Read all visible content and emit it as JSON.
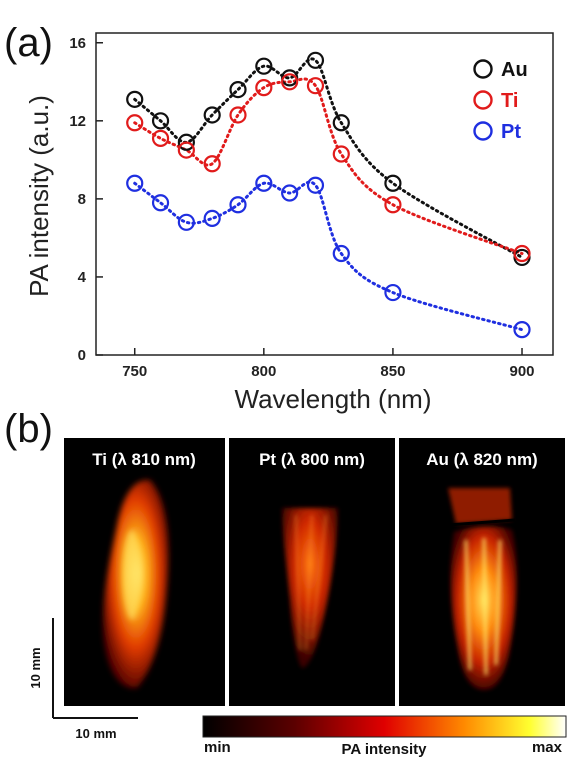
{
  "panel_a_label": "(a)",
  "panel_b_label": "(b)",
  "colors": {
    "Au": "#111111",
    "Ti": "#e11b1b",
    "Pt": "#1f2fe0"
  },
  "chart_data": {
    "type": "scatter",
    "title": "",
    "xlabel": "Wavelength (nm)",
    "ylabel": "PA intensity (a.u.)",
    "xlim": [
      735,
      912
    ],
    "ylim": [
      0,
      16.5
    ],
    "xticks": [
      750,
      800,
      850,
      900
    ],
    "yticks": [
      0,
      4,
      8,
      12,
      16
    ],
    "grid": false,
    "legend_position": "top-right",
    "marker": "open-circle",
    "line_style": "dotted",
    "x": [
      750,
      760,
      770,
      780,
      790,
      800,
      810,
      820,
      830,
      850,
      900
    ],
    "series": [
      {
        "name": "Au",
        "color": "#111111",
        "values": [
          13.1,
          12.0,
          10.9,
          12.3,
          13.6,
          14.8,
          14.2,
          15.1,
          11.9,
          8.8,
          5.0
        ]
      },
      {
        "name": "Ti",
        "color": "#e11b1b",
        "values": [
          11.9,
          11.1,
          10.5,
          9.8,
          12.3,
          13.7,
          14.0,
          13.8,
          10.3,
          7.7,
          5.2
        ]
      },
      {
        "name": "Pt",
        "color": "#1f2fe0",
        "values": [
          8.8,
          7.8,
          6.8,
          7.0,
          7.7,
          8.8,
          8.3,
          8.7,
          5.2,
          3.2,
          1.3
        ]
      }
    ]
  },
  "images": [
    {
      "title": "Ti (λ 810 nm)"
    },
    {
      "title": "Pt (λ 800 nm)"
    },
    {
      "title": "Au (λ 820 nm)"
    }
  ],
  "scale_bar": {
    "vertical_label": "10 mm",
    "horizontal_label": "10 mm"
  },
  "colorbar": {
    "min_label": "min",
    "title": "PA intensity",
    "max_label": "max"
  }
}
